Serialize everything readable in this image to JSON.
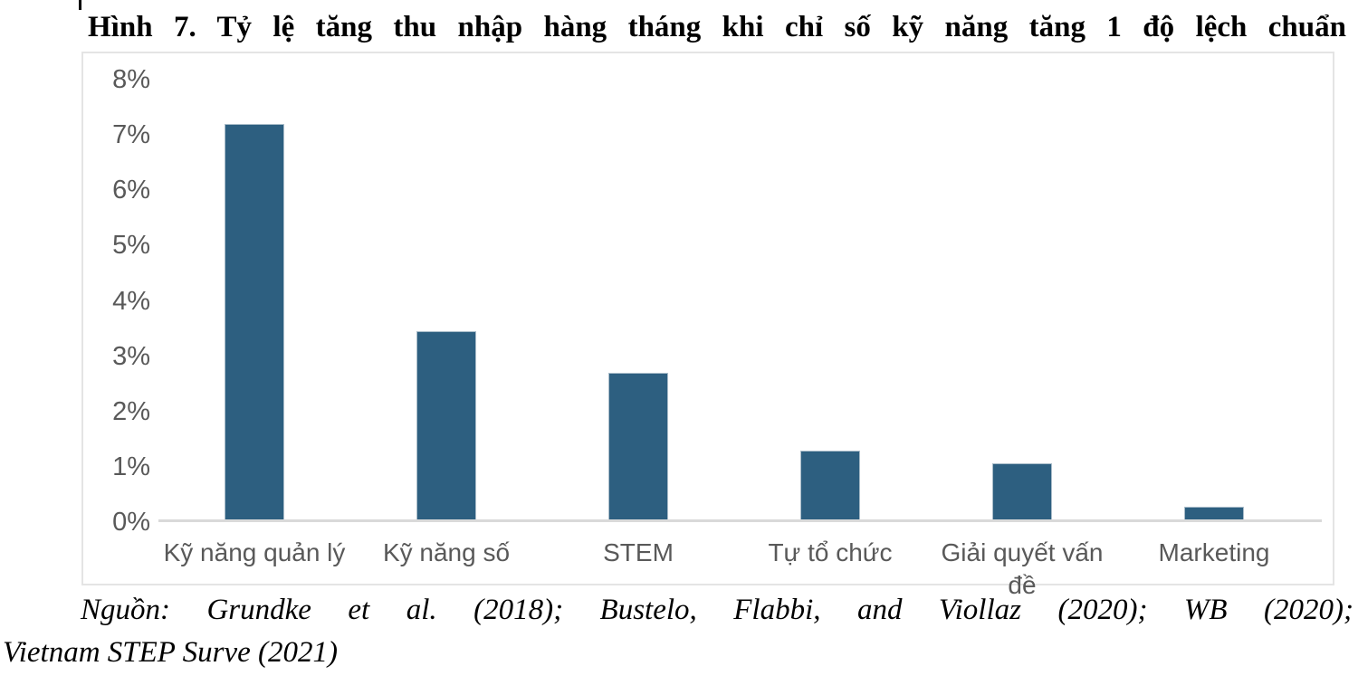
{
  "page": {
    "background": "#ffffff"
  },
  "cursor_mark": {
    "description": "text-caret-mark"
  },
  "title": "Hình 7. Tỷ lệ tăng thu nhập hàng tháng khi chỉ số kỹ năng tăng 1 độ lệch chuẩn",
  "chart_data": {
    "type": "bar",
    "title": "Hình 7. Tỷ lệ tăng thu nhập hàng tháng khi chỉ số kỹ năng tăng 1 độ lệch chuẩn",
    "categories": [
      "Kỹ năng quản lý",
      "Kỹ năng số",
      "STEM",
      "Tự tổ chức",
      "Giải quyết vấn đề",
      "Marketing"
    ],
    "values": [
      7.2,
      3.45,
      2.7,
      1.3,
      1.07,
      0.28
    ],
    "unit": "%",
    "y_ticks": [
      "8%",
      "7%",
      "6%",
      "5%",
      "4%",
      "3%",
      "2%",
      "1%",
      "0%"
    ],
    "ylim": [
      0,
      8
    ],
    "grid": false,
    "legend": "none",
    "xlabel": "",
    "ylabel": "",
    "colors": {
      "bar_fill": "#2d5f80",
      "bar_border": "#a9bcc9",
      "axis_line": "#d9d9d9",
      "tick_label": "#595959",
      "category_label": "#595959",
      "frame_border": "#e4e4e4"
    }
  },
  "source": {
    "line1": "Nguồn: Grundke et al. (2018); Bustelo, Flabbi, and Viollaz (2020); WB (2020);",
    "line2": "Vietnam STEP Surve (2021)"
  }
}
